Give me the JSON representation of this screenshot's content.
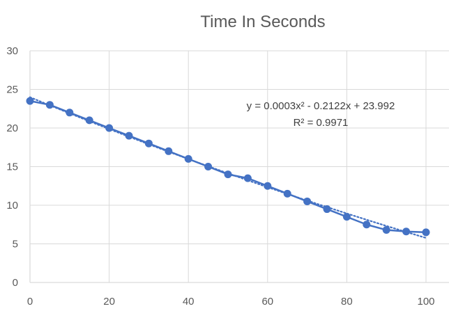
{
  "chart_data": {
    "type": "line",
    "title": "Time In Seconds",
    "xlabel": "",
    "ylabel": "",
    "xlim": [
      0,
      100
    ],
    "ylim": [
      0,
      30
    ],
    "x_ticks": [
      0,
      20,
      40,
      60,
      80,
      100
    ],
    "y_ticks": [
      0,
      5,
      10,
      15,
      20,
      25,
      30
    ],
    "x_tick_labels": [
      "0",
      "20",
      "40",
      "60",
      "80",
      "100"
    ],
    "y_tick_labels": [
      "0",
      "5",
      "10",
      "15",
      "20",
      "25",
      "30"
    ],
    "grid": "vertical and horizontal major gridlines",
    "legend": "none",
    "series": [
      {
        "x": [
          0,
          5,
          10,
          15,
          20,
          25,
          30,
          35,
          40,
          45,
          50,
          55,
          60,
          65,
          70,
          75,
          80,
          85,
          90,
          95,
          100
        ],
        "values": [
          23.5,
          23,
          22,
          21,
          20,
          19,
          18,
          17,
          16,
          15,
          14,
          13.5,
          12.5,
          11.5,
          10.5,
          9.5,
          8.5,
          7.5,
          6.8,
          6.6,
          6.5
        ],
        "color": "#4472C4",
        "marker": "circle"
      }
    ],
    "trendline": {
      "type": "polynomial",
      "order": 2,
      "coefficients": [
        0.0003,
        -0.2122,
        23.992
      ],
      "style": "dotted",
      "color": "#4472C4",
      "equation_label": "y = 0.0003x² - 0.2122x + 23.992",
      "r2_label": "R² = 0.9971"
    }
  }
}
